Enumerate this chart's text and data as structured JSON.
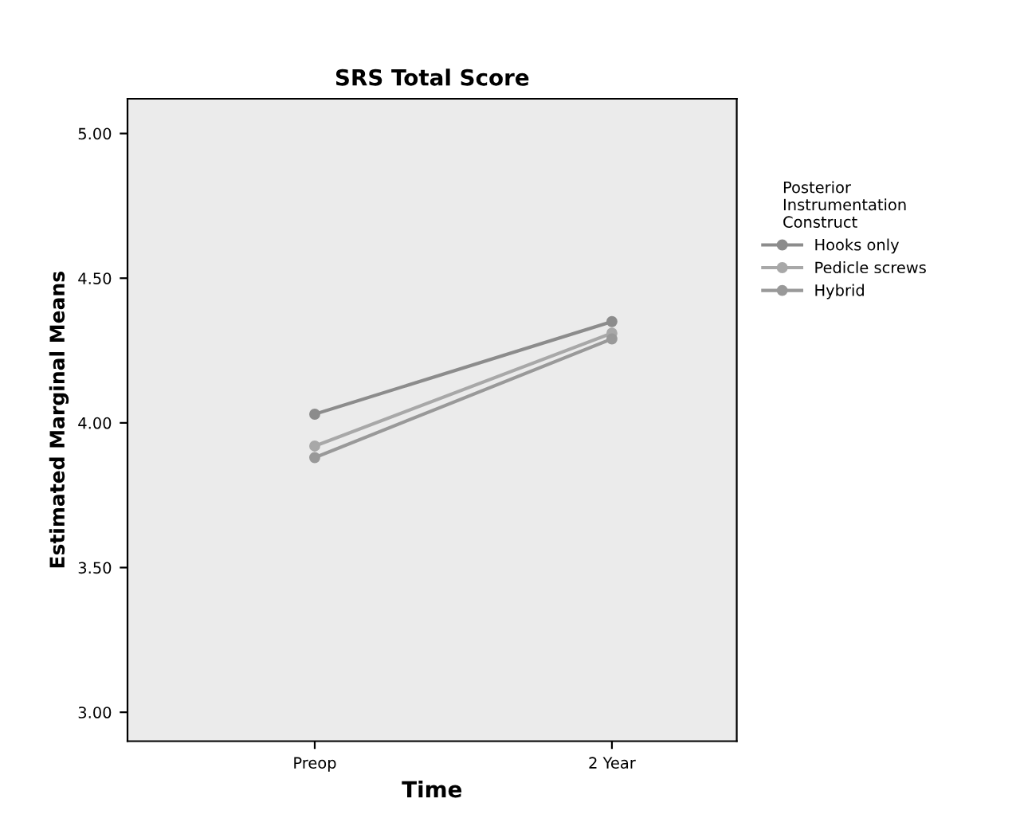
{
  "chart_data": {
    "type": "line",
    "title": "SRS Total Score",
    "xlabel": "Time",
    "ylabel": "Estimated Marginal Means",
    "legend_title": "Posterior\nInstrumentation\nConstruct",
    "categories": [
      "Preop",
      "2 Year"
    ],
    "series": [
      {
        "name": "Hooks only",
        "color": "#8c8c8c",
        "values": [
          4.03,
          4.35
        ]
      },
      {
        "name": "Pedicle screws",
        "color": "#a8a8a8",
        "values": [
          3.92,
          4.31
        ]
      },
      {
        "name": "Hybrid",
        "color": "#999999",
        "values": [
          3.88,
          4.29
        ]
      }
    ],
    "ylim": [
      2.9,
      5.12
    ],
    "yticks": [
      {
        "value": 3.0,
        "label": "3.00"
      },
      {
        "value": 3.5,
        "label": "3.50"
      },
      {
        "value": 4.0,
        "label": "4.00"
      },
      {
        "value": 4.5,
        "label": "4.50"
      },
      {
        "value": 5.0,
        "label": "5.00"
      }
    ],
    "legend": "right",
    "marker": "circle",
    "grid": false
  }
}
